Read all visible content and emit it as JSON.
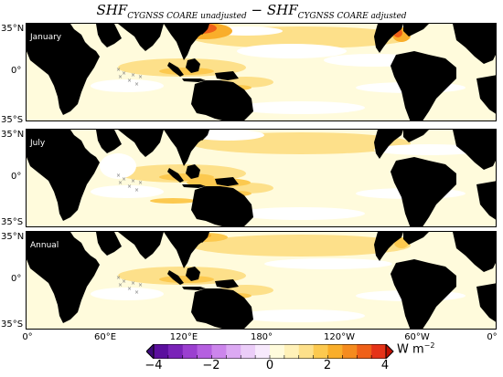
{
  "title": {
    "sym1": "SHF",
    "sub1": "CYGNSS COARE unadjusted",
    "op": " − ",
    "sym2": "SHF",
    "sub2": "CYGNSS COARE adjusted"
  },
  "panels": [
    {
      "label": "January"
    },
    {
      "label": "July"
    },
    {
      "label": "Annual"
    }
  ],
  "lat_labels": {
    "north": "35°N",
    "equator": "0°",
    "south": "35°S"
  },
  "lon_labels": [
    "0°",
    "60°E",
    "120°E",
    "180°",
    "120°W",
    "60°W",
    "0°"
  ],
  "colorbar": {
    "ticks": [
      "−4",
      "−2",
      "0",
      "2",
      "4"
    ],
    "unit": "W m",
    "unit_exp": "−2",
    "range": [
      -4,
      4
    ],
    "colors": [
      "#5b0f9e",
      "#7a23b8",
      "#9b3fd0",
      "#b55fe0",
      "#cc85ec",
      "#dca9f3",
      "#ebcdf8",
      "#f7e9fc",
      "#fffbdc",
      "#fff1b8",
      "#fde08a",
      "#fcc94f",
      "#f9ae2a",
      "#f58b1e",
      "#ef6018",
      "#e53318"
    ]
  },
  "colors": {
    "land": "#000000",
    "ocean_background": "#fffbdc",
    "near_zero": "#ffffff"
  }
}
